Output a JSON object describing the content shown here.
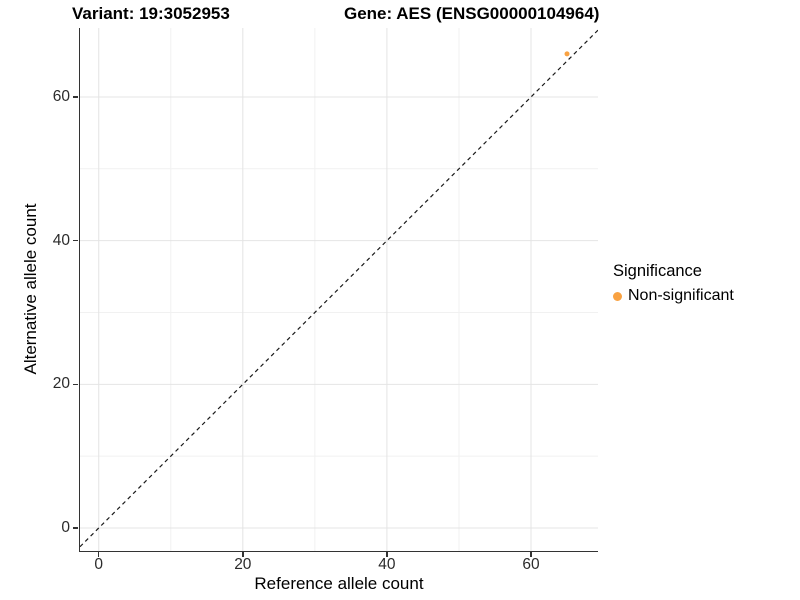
{
  "header": {
    "title_variant": "Variant: 19:3052953",
    "title_gene": "Gene: AES (ENSG00000104964)"
  },
  "chart_data": {
    "type": "scatter",
    "title": "Variant: 19:3052953   Gene: AES (ENSG00000104964)",
    "xlabel": "Reference allele count",
    "ylabel": "Alternative allele count",
    "xlim": [
      -2.6,
      69.3
    ],
    "ylim": [
      -3.2,
      69.6
    ],
    "xticks": [
      0,
      20,
      40,
      60
    ],
    "yticks": [
      0,
      20,
      40,
      60
    ],
    "minor_xticks": [
      10,
      30,
      50
    ],
    "minor_yticks": [
      10,
      30,
      50
    ],
    "grid": "on",
    "legend_position": "right",
    "reference_line": {
      "slope": 1,
      "intercept": 0,
      "style": "dashed",
      "color": "#1a1a1a"
    },
    "series": [
      {
        "name": "Non-significant",
        "color": "#F9A242",
        "point_radius_px": 2.5,
        "points": [
          {
            "x": 65,
            "y": 66
          }
        ]
      }
    ]
  },
  "legend": {
    "title": "Significance",
    "items": [
      {
        "label": "Non-significant",
        "color": "#F9A242"
      }
    ]
  },
  "style": {
    "background": "#FFFFFF",
    "axis_line_color": "#333333",
    "tick_label_color": "#2B2B2B",
    "major_grid_color": "#E4E4E4",
    "minor_grid_color": "#F1F1F1"
  }
}
